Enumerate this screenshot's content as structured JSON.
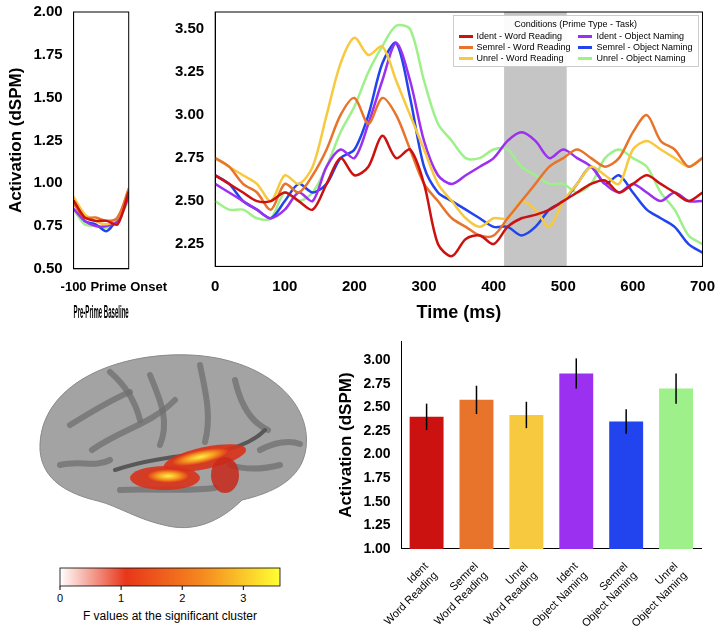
{
  "chart_data": [
    {
      "type": "line",
      "xlabel": "Pre-Prime Baseline",
      "ylabel": "Activation (dSPM)",
      "x": [
        -100,
        -80,
        -60,
        -40,
        -20,
        0
      ],
      "xlim": [
        -100,
        0
      ],
      "xticks": [
        -100,
        {
          "value": 0,
          "label": "Prime Onset"
        }
      ],
      "ylim": [
        0.5,
        2.0
      ],
      "yticks": [
        {
          "value": 0.5,
          "label": "0.50"
        },
        {
          "value": 0.75,
          "label": "0.75"
        },
        {
          "value": 1.0,
          "label": "1.00"
        },
        {
          "value": 1.25,
          "label": "1.25"
        },
        {
          "value": 1.5,
          "label": "1.50"
        },
        {
          "value": 1.75,
          "label": "1.75"
        },
        {
          "value": 2.0,
          "label": "2.00"
        }
      ],
      "grid": false,
      "series": [
        {
          "color": "#cc1111",
          "values": [
            0.9,
            0.8,
            0.78,
            0.78,
            0.76,
            0.95
          ]
        },
        {
          "color": "#e8732a",
          "values": [
            0.88,
            0.8,
            0.8,
            0.78,
            0.8,
            0.97
          ]
        },
        {
          "color": "#f7c93e",
          "values": [
            0.92,
            0.82,
            0.78,
            0.76,
            0.8,
            0.95
          ]
        },
        {
          "color": "#9b30f0",
          "values": [
            0.85,
            0.78,
            0.75,
            0.75,
            0.78,
            0.92
          ]
        },
        {
          "color": "#2244ee",
          "values": [
            0.9,
            0.78,
            0.76,
            0.72,
            0.8,
            0.93
          ]
        },
        {
          "color": "#9ef08a",
          "values": [
            0.85,
            0.76,
            0.75,
            0.74,
            0.78,
            0.9
          ]
        }
      ]
    },
    {
      "type": "line",
      "xlabel": "Time (ms)",
      "x": [
        0,
        20,
        40,
        60,
        80,
        100,
        120,
        140,
        160,
        180,
        200,
        220,
        240,
        260,
        280,
        300,
        320,
        340,
        360,
        380,
        400,
        420,
        440,
        460,
        480,
        500,
        520,
        540,
        560,
        580,
        600,
        620,
        640,
        660,
        680,
        700
      ],
      "xlim": [
        0,
        700
      ],
      "xticks": [
        0,
        100,
        200,
        300,
        400,
        500,
        600,
        700
      ],
      "ylim": [
        2.12,
        3.6
      ],
      "yticks": [
        2.25,
        {
          "value": 2.5,
          "label": "2.50"
        },
        2.75,
        {
          "value": 3.0,
          "label": "3.00"
        },
        3.25,
        {
          "value": 3.5,
          "label": "3.50"
        }
      ],
      "highlight": [
        415,
        505
      ],
      "grid": false,
      "legend": "upper right",
      "legend_title": "Conditions (Prime Type - Task)",
      "series": [
        {
          "name": "Ident - Word Reading",
          "color": "#cc1111",
          "values": [
            2.65,
            2.6,
            2.55,
            2.5,
            2.5,
            2.55,
            2.5,
            2.45,
            2.6,
            2.75,
            2.65,
            2.7,
            2.88,
            2.75,
            2.8,
            2.6,
            2.25,
            2.18,
            2.28,
            2.3,
            2.25,
            2.35,
            2.4,
            2.42,
            2.45,
            2.5,
            2.55,
            2.6,
            2.62,
            2.55,
            2.6,
            2.65,
            2.6,
            2.55,
            2.5,
            2.55
          ]
        },
        {
          "name": "Semrel - Word Reading",
          "color": "#e8732a",
          "values": [
            2.75,
            2.7,
            2.6,
            2.55,
            2.45,
            2.6,
            2.55,
            2.65,
            2.8,
            3.0,
            3.1,
            2.95,
            3.1,
            3.0,
            2.8,
            2.6,
            2.5,
            2.4,
            2.35,
            2.3,
            2.3,
            2.4,
            2.5,
            2.6,
            2.7,
            2.75,
            2.8,
            2.75,
            2.7,
            2.75,
            2.9,
            3.0,
            2.85,
            2.8,
            2.7,
            2.75
          ]
        },
        {
          "name": "Unrel - Word Reading",
          "color": "#f7c93e",
          "values": [
            2.75,
            2.7,
            2.65,
            2.6,
            2.5,
            2.65,
            2.6,
            2.7,
            3.0,
            3.3,
            3.45,
            3.35,
            3.4,
            3.2,
            3.0,
            2.8,
            2.6,
            2.5,
            2.4,
            2.35,
            2.4,
            2.4,
            2.5,
            2.45,
            2.35,
            2.5,
            2.6,
            2.7,
            2.65,
            2.6,
            2.8,
            2.85,
            2.8,
            2.75,
            2.7,
            2.75
          ]
        },
        {
          "name": "Ident - Object Naming",
          "color": "#9b30f0",
          "values": [
            2.6,
            2.55,
            2.5,
            2.45,
            2.4,
            2.45,
            2.55,
            2.5,
            2.7,
            2.8,
            2.75,
            2.95,
            3.2,
            3.42,
            3.2,
            2.85,
            2.65,
            2.6,
            2.65,
            2.7,
            2.75,
            2.85,
            2.9,
            2.85,
            2.75,
            2.8,
            2.75,
            2.7,
            2.6,
            2.55,
            2.6,
            2.55,
            2.5,
            2.55,
            2.5,
            2.5
          ]
        },
        {
          "name": "Semrel - Object Naming",
          "color": "#2244ee",
          "values": [
            2.65,
            2.6,
            2.5,
            2.45,
            2.4,
            2.5,
            2.6,
            2.55,
            2.6,
            2.75,
            2.8,
            3.0,
            3.3,
            3.42,
            3.1,
            2.7,
            2.55,
            2.5,
            2.45,
            2.4,
            2.35,
            2.35,
            2.3,
            2.35,
            2.45,
            2.5,
            2.6,
            2.7,
            2.6,
            2.65,
            2.55,
            2.45,
            2.4,
            2.35,
            2.25,
            2.2
          ]
        },
        {
          "name": "Unrel - Object Naming",
          "color": "#9ef08a",
          "values": [
            2.5,
            2.45,
            2.45,
            2.4,
            2.4,
            2.55,
            2.5,
            2.55,
            2.7,
            2.9,
            3.05,
            3.25,
            3.4,
            3.52,
            3.5,
            3.2,
            2.95,
            2.85,
            2.75,
            2.75,
            2.8,
            2.8,
            2.7,
            2.65,
            2.6,
            2.6,
            2.55,
            2.6,
            2.75,
            2.8,
            2.75,
            2.7,
            2.55,
            2.45,
            2.3,
            2.25
          ]
        }
      ]
    },
    {
      "type": "bar",
      "ylabel": "Activation (dSPM)",
      "categories": [
        "Ident Word Reading",
        "Semrel Word Reading",
        "Unrel Word Reading",
        "Ident Object Naming",
        "Semrel Object Naming",
        "Unrel Object Naming"
      ],
      "values": [
        2.4,
        2.58,
        2.42,
        2.86,
        2.35,
        2.7
      ],
      "errors": [
        0.14,
        0.15,
        0.14,
        0.16,
        0.13,
        0.16
      ],
      "colors": [
        "#cc1111",
        "#e8732a",
        "#f7c93e",
        "#9b30f0",
        "#2244ee",
        "#9ef08a"
      ],
      "ylim": [
        1.0,
        3.2
      ],
      "yticks": [
        {
          "value": 1.0,
          "label": "1.00"
        },
        1.25,
        {
          "value": 1.5,
          "label": "1.50"
        },
        1.75,
        {
          "value": 2.0,
          "label": "2.00"
        },
        2.25,
        {
          "value": 2.5,
          "label": "2.50"
        },
        2.75,
        {
          "value": 3.0,
          "label": "3.00"
        }
      ],
      "grid": false
    }
  ],
  "brain_map": {
    "colorbar": {
      "label": "F values at the significant cluster",
      "range": [
        0,
        3.6
      ],
      "ticks": [
        0,
        1,
        2,
        3
      ]
    }
  }
}
